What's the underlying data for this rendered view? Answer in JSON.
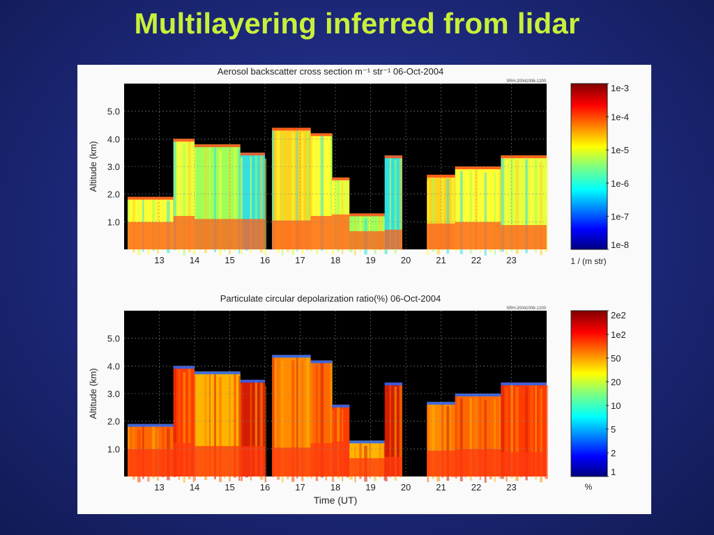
{
  "slide": {
    "title": "Multilayering inferred from lidar"
  },
  "chart_data": [
    {
      "type": "heatmap",
      "title": "Aerosol backscatter cross section m⁻¹ str⁻¹  06-Oct-2004",
      "run_label": "SRH-20041006-1200",
      "ylabel": "Altitude (km)",
      "xlabel": "",
      "x_ticks": [
        "13",
        "14",
        "15",
        "16",
        "17",
        "18",
        "19",
        "20",
        "21",
        "22",
        "23"
      ],
      "y_ticks": [
        "1.0",
        "2.0",
        "3.0",
        "4.0",
        "5.0"
      ],
      "xlim": [
        12.0,
        24.0
      ],
      "ylim": [
        0.0,
        6.0
      ],
      "colorbar": {
        "labels": [
          "1e-8",
          "1e-7",
          "1e-6",
          "1e-5",
          "1e-4",
          "1e-3"
        ],
        "scale": "log",
        "unit_label": "1 / (m str)"
      },
      "grid": true,
      "cloud_layers": [
        {
          "x": [
            12.1,
            13.4
          ],
          "top": 1.9,
          "band": 1.8
        },
        {
          "x": [
            13.4,
            14.0
          ],
          "top": 4.0,
          "band": 2.2
        },
        {
          "x": [
            14.0,
            15.3
          ],
          "top": 3.8,
          "band": 2.0
        },
        {
          "x": [
            15.3,
            16.0
          ],
          "top": 3.5,
          "band": 2.0
        },
        {
          "x": [
            16.2,
            17.3
          ],
          "top": 4.4,
          "band": 1.9
        },
        {
          "x": [
            17.3,
            17.9
          ],
          "top": 4.2,
          "band": 2.2
        },
        {
          "x": [
            17.9,
            18.4
          ],
          "top": 2.6,
          "band": 2.3
        },
        {
          "x": [
            18.4,
            19.4
          ],
          "top": 1.3,
          "band": 1.2
        },
        {
          "x": [
            19.4,
            19.9
          ],
          "top": 3.4,
          "band": 1.3
        },
        {
          "x": [
            20.6,
            21.4
          ],
          "top": 2.7,
          "band": 1.7
        },
        {
          "x": [
            21.4,
            22.7
          ],
          "top": 3.0,
          "band": 1.8
        },
        {
          "x": [
            22.7,
            24.0
          ],
          "top": 3.4,
          "band": 1.6
        }
      ]
    },
    {
      "type": "heatmap",
      "title": "Particulate circular depolarization ratio(%)  06-Oct-2004",
      "run_label": "SRH-20041006-1200",
      "ylabel": "Altitude (km)",
      "xlabel": "Time (UT)",
      "x_ticks": [
        "13",
        "14",
        "15",
        "16",
        "17",
        "18",
        "19",
        "20",
        "21",
        "22",
        "23"
      ],
      "y_ticks": [
        "1.0",
        "2.0",
        "3.0",
        "4.0",
        "5.0"
      ],
      "xlim": [
        12.0,
        24.0
      ],
      "ylim": [
        0.0,
        6.0
      ],
      "colorbar": {
        "labels": [
          "1",
          "2",
          "5",
          "10",
          "20",
          "50",
          "1e2",
          "2e2"
        ],
        "scale": "log",
        "unit_label": "%"
      },
      "grid": true,
      "cloud_layers": [
        {
          "x": [
            12.1,
            13.4
          ],
          "top": 1.9,
          "band": 1.8
        },
        {
          "x": [
            13.4,
            14.0
          ],
          "top": 4.0,
          "band": 2.2
        },
        {
          "x": [
            14.0,
            15.3
          ],
          "top": 3.8,
          "band": 2.0
        },
        {
          "x": [
            15.3,
            16.0
          ],
          "top": 3.5,
          "band": 2.0
        },
        {
          "x": [
            16.2,
            17.3
          ],
          "top": 4.4,
          "band": 1.9
        },
        {
          "x": [
            17.3,
            17.9
          ],
          "top": 4.2,
          "band": 2.2
        },
        {
          "x": [
            17.9,
            18.4
          ],
          "top": 2.6,
          "band": 2.3
        },
        {
          "x": [
            18.4,
            19.4
          ],
          "top": 1.3,
          "band": 1.2
        },
        {
          "x": [
            19.4,
            19.9
          ],
          "top": 3.4,
          "band": 1.3
        },
        {
          "x": [
            20.6,
            21.4
          ],
          "top": 2.7,
          "band": 1.7
        },
        {
          "x": [
            21.4,
            22.7
          ],
          "top": 3.0,
          "band": 1.8
        },
        {
          "x": [
            22.7,
            24.0
          ],
          "top": 3.4,
          "band": 1.6
        }
      ]
    }
  ]
}
